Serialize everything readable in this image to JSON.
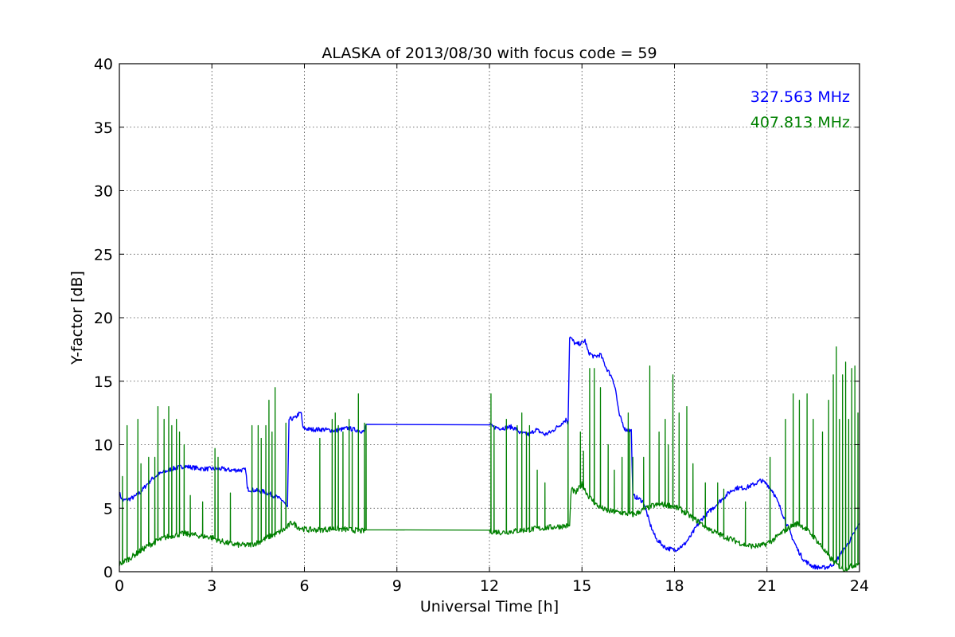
{
  "chart_data": {
    "type": "line",
    "title": "ALASKA of 2013/08/30 with focus code = 59",
    "xlabel": "Universal Time [h]",
    "ylabel": "Y-factor [dB]",
    "xlim": [
      0,
      24
    ],
    "ylim": [
      0,
      40
    ],
    "xticks": [
      0,
      3,
      6,
      9,
      12,
      15,
      18,
      21,
      24
    ],
    "yticks": [
      0,
      5,
      10,
      15,
      20,
      25,
      30,
      35,
      40
    ],
    "xtick_labels": [
      "0",
      "3",
      "6",
      "9",
      "12",
      "15",
      "18",
      "21",
      "24"
    ],
    "ytick_labels": [
      "0",
      "5",
      "10",
      "15",
      "20",
      "25",
      "30",
      "35",
      "40"
    ],
    "grid": true,
    "legend": "top-right",
    "series": [
      {
        "name": "327.563 MHz",
        "color": "#0000ff",
        "points": [
          [
            0.0,
            6.2
          ],
          [
            0.1,
            5.6
          ],
          [
            0.3,
            5.7
          ],
          [
            0.5,
            5.9
          ],
          [
            0.7,
            6.3
          ],
          [
            0.9,
            6.9
          ],
          [
            1.1,
            7.4
          ],
          [
            1.3,
            7.7
          ],
          [
            1.5,
            7.9
          ],
          [
            1.7,
            8.1
          ],
          [
            1.9,
            8.2
          ],
          [
            2.1,
            8.3
          ],
          [
            2.4,
            8.2
          ],
          [
            2.7,
            8.1
          ],
          [
            3.0,
            8.1
          ],
          [
            3.3,
            8.1
          ],
          [
            3.6,
            8.0
          ],
          [
            3.9,
            8.0
          ],
          [
            4.1,
            8.0
          ],
          [
            4.15,
            6.5
          ],
          [
            4.4,
            6.4
          ],
          [
            4.7,
            6.3
          ],
          [
            5.0,
            6.0
          ],
          [
            5.3,
            5.6
          ],
          [
            5.45,
            5.0
          ],
          [
            5.5,
            12.0
          ],
          [
            5.7,
            12.1
          ],
          [
            5.8,
            12.4
          ],
          [
            5.9,
            12.5
          ],
          [
            5.95,
            11.3
          ],
          [
            6.2,
            11.2
          ],
          [
            6.6,
            11.2
          ],
          [
            7.0,
            11.1
          ],
          [
            7.4,
            11.3
          ],
          [
            7.8,
            11.1
          ],
          [
            7.95,
            11.0
          ],
          [
            8.0,
            11.6
          ],
          [
            12.0,
            11.6
          ],
          [
            12.1,
            11.4
          ],
          [
            12.4,
            11.3
          ],
          [
            12.7,
            11.4
          ],
          [
            12.9,
            11.2
          ],
          [
            13.0,
            10.9
          ],
          [
            13.3,
            10.8
          ],
          [
            13.5,
            11.2
          ],
          [
            13.8,
            10.8
          ],
          [
            14.0,
            11.0
          ],
          [
            14.2,
            11.4
          ],
          [
            14.4,
            11.8
          ],
          [
            14.5,
            12.0
          ],
          [
            14.55,
            11.7
          ],
          [
            14.6,
            18.5
          ],
          [
            14.8,
            17.9
          ],
          [
            15.0,
            18.0
          ],
          [
            15.1,
            18.2
          ],
          [
            15.2,
            17.3
          ],
          [
            15.4,
            16.9
          ],
          [
            15.6,
            17.1
          ],
          [
            15.8,
            16.0
          ],
          [
            16.0,
            15.2
          ],
          [
            16.1,
            14.2
          ],
          [
            16.2,
            12.4
          ],
          [
            16.4,
            11.2
          ],
          [
            16.6,
            11.1
          ],
          [
            16.65,
            6.0
          ],
          [
            16.8,
            5.8
          ],
          [
            17.0,
            5.5
          ],
          [
            17.2,
            3.8
          ],
          [
            17.4,
            2.6
          ],
          [
            17.7,
            1.9
          ],
          [
            18.0,
            1.7
          ],
          [
            18.3,
            2.1
          ],
          [
            18.5,
            2.7
          ],
          [
            18.7,
            3.5
          ],
          [
            18.9,
            4.2
          ],
          [
            19.2,
            4.9
          ],
          [
            19.5,
            5.6
          ],
          [
            19.8,
            6.3
          ],
          [
            20.0,
            6.6
          ],
          [
            20.3,
            6.6
          ],
          [
            20.6,
            6.9
          ],
          [
            20.8,
            7.2
          ],
          [
            21.0,
            6.9
          ],
          [
            21.2,
            6.3
          ],
          [
            21.4,
            5.2
          ],
          [
            21.6,
            4.0
          ],
          [
            21.8,
            2.8
          ],
          [
            22.0,
            1.7
          ],
          [
            22.2,
            0.9
          ],
          [
            22.5,
            0.4
          ],
          [
            22.8,
            0.3
          ],
          [
            23.0,
            0.4
          ],
          [
            23.2,
            0.7
          ],
          [
            23.4,
            1.4
          ],
          [
            23.6,
            2.1
          ],
          [
            23.8,
            2.9
          ],
          [
            24.0,
            3.8
          ]
        ]
      },
      {
        "name": "407.813 MHz",
        "color": "#008000",
        "points": [
          [
            0.0,
            0.6
          ],
          [
            0.3,
            1.0
          ],
          [
            0.6,
            1.5
          ],
          [
            0.9,
            2.0
          ],
          [
            1.2,
            2.4
          ],
          [
            1.5,
            2.7
          ],
          [
            1.8,
            2.9
          ],
          [
            2.1,
            3.0
          ],
          [
            2.4,
            2.9
          ],
          [
            2.7,
            2.8
          ],
          [
            3.0,
            2.7
          ],
          [
            3.3,
            2.4
          ],
          [
            3.6,
            2.2
          ],
          [
            3.9,
            2.1
          ],
          [
            4.2,
            2.1
          ],
          [
            4.5,
            2.3
          ],
          [
            4.8,
            2.7
          ],
          [
            5.1,
            3.0
          ],
          [
            5.4,
            3.4
          ],
          [
            5.6,
            3.9
          ],
          [
            5.8,
            3.5
          ],
          [
            6.1,
            3.3
          ],
          [
            6.5,
            3.3
          ],
          [
            7.0,
            3.4
          ],
          [
            7.5,
            3.3
          ],
          [
            7.9,
            3.2
          ],
          [
            8.0,
            3.3
          ],
          [
            12.0,
            3.2
          ],
          [
            12.4,
            3.1
          ],
          [
            12.8,
            3.2
          ],
          [
            13.2,
            3.3
          ],
          [
            13.6,
            3.4
          ],
          [
            14.0,
            3.5
          ],
          [
            14.4,
            3.6
          ],
          [
            14.6,
            3.6
          ],
          [
            14.65,
            6.5
          ],
          [
            14.8,
            6.2
          ],
          [
            15.0,
            6.9
          ],
          [
            15.2,
            6.0
          ],
          [
            15.5,
            5.2
          ],
          [
            15.8,
            4.8
          ],
          [
            16.1,
            4.7
          ],
          [
            16.4,
            4.6
          ],
          [
            16.7,
            4.5
          ],
          [
            17.0,
            4.9
          ],
          [
            17.3,
            5.2
          ],
          [
            17.6,
            5.3
          ],
          [
            17.9,
            5.2
          ],
          [
            18.2,
            4.9
          ],
          [
            18.5,
            4.4
          ],
          [
            18.8,
            3.9
          ],
          [
            19.1,
            3.4
          ],
          [
            19.4,
            3.0
          ],
          [
            19.7,
            2.7
          ],
          [
            20.0,
            2.4
          ],
          [
            20.3,
            2.1
          ],
          [
            20.6,
            2.0
          ],
          [
            20.9,
            2.1
          ],
          [
            21.2,
            2.5
          ],
          [
            21.5,
            3.1
          ],
          [
            21.8,
            3.6
          ],
          [
            22.0,
            3.8
          ],
          [
            22.2,
            3.5
          ],
          [
            22.5,
            2.8
          ],
          [
            22.8,
            1.9
          ],
          [
            23.0,
            1.2
          ],
          [
            23.3,
            0.5
          ],
          [
            23.5,
            0.2
          ],
          [
            23.7,
            0.4
          ],
          [
            24.0,
            0.7
          ]
        ],
        "spikes": [
          [
            0.1,
            7.5
          ],
          [
            0.25,
            11.5
          ],
          [
            0.6,
            12.0
          ],
          [
            0.7,
            8.5
          ],
          [
            0.95,
            9.0
          ],
          [
            1.15,
            9.0
          ],
          [
            1.25,
            13.0
          ],
          [
            1.45,
            12.0
          ],
          [
            1.6,
            13.0
          ],
          [
            1.7,
            11.5
          ],
          [
            1.85,
            12.0
          ],
          [
            1.95,
            11.0
          ],
          [
            2.1,
            10.0
          ],
          [
            2.3,
            6.0
          ],
          [
            2.7,
            5.5
          ],
          [
            3.1,
            9.7
          ],
          [
            3.2,
            9.0
          ],
          [
            3.6,
            6.2
          ],
          [
            4.3,
            11.5
          ],
          [
            4.5,
            11.5
          ],
          [
            4.6,
            10.5
          ],
          [
            4.75,
            11.5
          ],
          [
            4.85,
            13.5
          ],
          [
            4.95,
            11.0
          ],
          [
            5.05,
            14.5
          ],
          [
            5.25,
            5.5
          ],
          [
            5.4,
            11.7
          ],
          [
            6.5,
            10.5
          ],
          [
            6.9,
            12.0
          ],
          [
            7.0,
            12.5
          ],
          [
            7.1,
            11.5
          ],
          [
            7.25,
            11.0
          ],
          [
            7.45,
            12.0
          ],
          [
            7.55,
            11.0
          ],
          [
            7.75,
            14.0
          ],
          [
            7.95,
            11.7
          ],
          [
            8.0,
            11.6
          ],
          [
            12.05,
            14.0
          ],
          [
            12.15,
            11.5
          ],
          [
            12.55,
            12.0
          ],
          [
            12.9,
            11.5
          ],
          [
            13.05,
            12.5
          ],
          [
            13.2,
            11.0
          ],
          [
            13.3,
            11.5
          ],
          [
            13.55,
            8.0
          ],
          [
            13.8,
            7.0
          ],
          [
            14.55,
            11.8
          ],
          [
            14.95,
            11.0
          ],
          [
            15.05,
            9.5
          ],
          [
            15.25,
            16.0
          ],
          [
            15.4,
            16.0
          ],
          [
            15.6,
            14.5
          ],
          [
            15.85,
            10.0
          ],
          [
            16.05,
            8.0
          ],
          [
            16.3,
            9.0
          ],
          [
            16.5,
            12.5
          ],
          [
            16.55,
            11.0
          ],
          [
            16.65,
            9.0
          ],
          [
            17.0,
            9.0
          ],
          [
            17.2,
            16.2
          ],
          [
            17.5,
            11.0
          ],
          [
            17.7,
            12.0
          ],
          [
            17.8,
            10.0
          ],
          [
            17.95,
            15.5
          ],
          [
            18.15,
            12.5
          ],
          [
            18.4,
            13.0
          ],
          [
            18.6,
            8.5
          ],
          [
            19.0,
            7.0
          ],
          [
            19.4,
            7.0
          ],
          [
            19.6,
            6.5
          ],
          [
            20.3,
            5.5
          ],
          [
            21.1,
            9.0
          ],
          [
            21.6,
            12.0
          ],
          [
            21.85,
            14.0
          ],
          [
            22.05,
            13.5
          ],
          [
            22.3,
            14.0
          ],
          [
            22.5,
            12.0
          ],
          [
            22.8,
            11.0
          ],
          [
            23.0,
            13.5
          ],
          [
            23.15,
            15.5
          ],
          [
            23.25,
            17.7
          ],
          [
            23.35,
            12.0
          ],
          [
            23.45,
            15.5
          ],
          [
            23.55,
            16.5
          ],
          [
            23.65,
            12.0
          ],
          [
            23.75,
            16.0
          ],
          [
            23.85,
            16.2
          ],
          [
            23.95,
            12.5
          ]
        ]
      }
    ]
  }
}
